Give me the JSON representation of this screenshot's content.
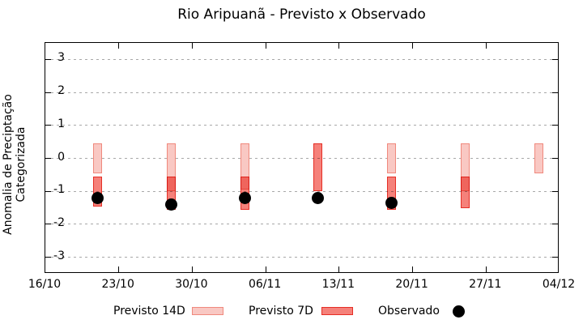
{
  "chart_data": {
    "type": "bar",
    "title": "Rio Aripuanã - Previsto x Observado",
    "ylabel": "Anomalia de Preciptação Categorizada",
    "xlabel": "",
    "x_tick_labels": [
      "16/10",
      "23/10",
      "30/10",
      "06/11",
      "13/11",
      "20/11",
      "27/11",
      "04/12"
    ],
    "x_tick_days": [
      0,
      7,
      14,
      21,
      28,
      35,
      42,
      49
    ],
    "x_range_days": [
      0,
      49
    ],
    "y_ticks": [
      -3,
      -2,
      -1,
      0,
      1,
      2,
      3
    ],
    "ylim": [
      -3.5,
      3.5
    ],
    "grid": "horizontal-dotted",
    "legend_position": "below-plot",
    "series": [
      {
        "name": "Previsto 14D",
        "type": "range-bar",
        "fill": "#f9c8c3",
        "border": "#f0897d"
      },
      {
        "name": "Previsto 7D",
        "type": "range-bar",
        "fill": "#f5817a",
        "border": "#e62e25"
      },
      {
        "name": "Observado",
        "type": "scatter-dot",
        "color": "#000000"
      }
    ],
    "groups": [
      {
        "date": "21/10",
        "day": 5,
        "previsto14": [
          -0.45,
          0.45
        ],
        "previsto7": [
          -1.45,
          -0.55
        ],
        "observado": -1.2
      },
      {
        "date": "28/10",
        "day": 12,
        "previsto14": [
          -1.0,
          0.45
        ],
        "previsto7": [
          -1.55,
          -0.55
        ],
        "observado": -1.4
      },
      {
        "date": "04/11",
        "day": 19,
        "previsto14": [
          -0.95,
          0.45
        ],
        "previsto7": [
          -1.55,
          -0.55
        ],
        "observado": -1.2
      },
      {
        "date": "11/11",
        "day": 26,
        "previsto14": null,
        "previsto7": [
          -1.0,
          0.45
        ],
        "observado": -1.2
      },
      {
        "date": "18/11",
        "day": 33,
        "previsto14": [
          -0.45,
          0.45
        ],
        "previsto7": [
          -1.55,
          -0.55
        ],
        "observado": -1.35
      },
      {
        "date": "25/11",
        "day": 40,
        "previsto14": [
          -1.0,
          0.45
        ],
        "previsto7": [
          -1.5,
          -0.55
        ],
        "observado": null
      },
      {
        "date": "02/12",
        "day": 47,
        "previsto14": [
          -0.45,
          0.45
        ],
        "previsto7": null,
        "observado": null
      }
    ]
  },
  "legend": {
    "previsto14_label": "Previsto 14D",
    "previsto7_label": "Previsto 7D",
    "observado_label": "Observado"
  },
  "colors": {
    "p14_fill": "#f9c8c3",
    "p14_border": "#f0897d",
    "p7_fill": "#f5817a",
    "p7_border": "#e62e25",
    "observado": "#000000",
    "gridline": "#a8a8a8",
    "axis": "#000000"
  }
}
